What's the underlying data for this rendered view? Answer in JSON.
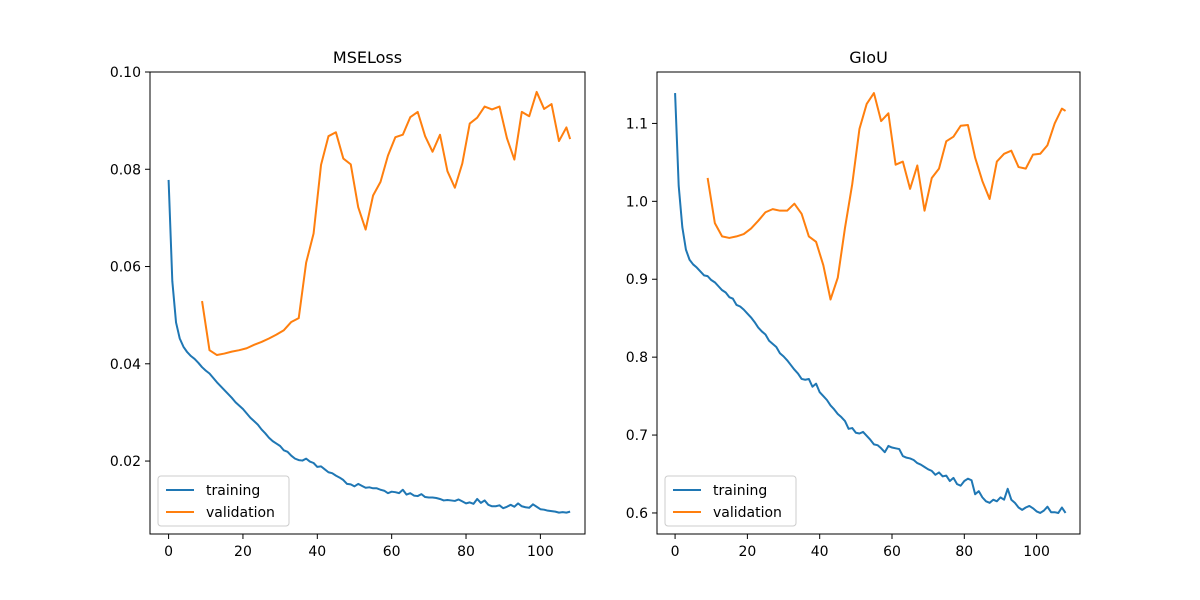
{
  "colors": {
    "training": "#1f77b4",
    "validation": "#ff7f0e",
    "axes": "#000000",
    "legend_border": "#cccccc"
  },
  "chart_data": [
    {
      "type": "line",
      "title": "MSELoss",
      "xlabel": "",
      "ylabel": "",
      "xlim": [
        -5,
        112
      ],
      "ylim": [
        0.005,
        0.1
      ],
      "xticks": [
        0,
        20,
        40,
        60,
        80,
        100
      ],
      "yticks": [
        0.02,
        0.04,
        0.06,
        0.08,
        0.1
      ],
      "ytick_labels": [
        "0.02",
        "0.04",
        "0.06",
        "0.08",
        "0.10"
      ],
      "grid": false,
      "legend": "lower-left",
      "series": [
        {
          "name": "training",
          "x": [
            0,
            1,
            2,
            3,
            4,
            5,
            6,
            7,
            8,
            9,
            10,
            11,
            12,
            13,
            14,
            15,
            16,
            17,
            18,
            19,
            20,
            21,
            22,
            23,
            24,
            25,
            26,
            27,
            28,
            29,
            30,
            31,
            32,
            33,
            34,
            35,
            36,
            37,
            38,
            39,
            40,
            41,
            42,
            43,
            44,
            45,
            46,
            47,
            48,
            49,
            50,
            51,
            52,
            53,
            54,
            55,
            56,
            57,
            58,
            59,
            60,
            61,
            62,
            63,
            64,
            65,
            66,
            67,
            68,
            69,
            70,
            71,
            72,
            73,
            74,
            75,
            76,
            77,
            78,
            79,
            80,
            81,
            82,
            83,
            84,
            85,
            86,
            87,
            88,
            89,
            90,
            91,
            92,
            93,
            94,
            95,
            96,
            97,
            98,
            99,
            100,
            101,
            102,
            103,
            104,
            105,
            106,
            107,
            108
          ],
          "values": [
            0.0778,
            0.057,
            0.0485,
            0.0452,
            0.0435,
            0.0424,
            0.0416,
            0.041,
            0.0402,
            0.0393,
            0.0386,
            0.038,
            0.0371,
            0.0362,
            0.0354,
            0.0346,
            0.0338,
            0.033,
            0.0321,
            0.0314,
            0.0307,
            0.0298,
            0.0289,
            0.0282,
            0.0275,
            0.0265,
            0.0257,
            0.0248,
            0.0241,
            0.0236,
            0.0231,
            0.0222,
            0.0219,
            0.0211,
            0.0205,
            0.0202,
            0.0201,
            0.0205,
            0.0199,
            0.0196,
            0.0188,
            0.0189,
            0.0183,
            0.0177,
            0.0175,
            0.017,
            0.0166,
            0.0161,
            0.0153,
            0.0152,
            0.0148,
            0.0153,
            0.0149,
            0.0145,
            0.0146,
            0.0144,
            0.0144,
            0.0141,
            0.0139,
            0.0134,
            0.0137,
            0.0136,
            0.0134,
            0.0141,
            0.0131,
            0.0134,
            0.0129,
            0.0128,
            0.0132,
            0.0126,
            0.0125,
            0.0125,
            0.0124,
            0.0122,
            0.0119,
            0.012,
            0.0119,
            0.0118,
            0.0121,
            0.0117,
            0.0113,
            0.0115,
            0.0112,
            0.0122,
            0.0114,
            0.0119,
            0.011,
            0.0107,
            0.0107,
            0.0109,
            0.0103,
            0.0106,
            0.011,
            0.0106,
            0.0113,
            0.0107,
            0.0105,
            0.0104,
            0.0111,
            0.0106,
            0.0101,
            0.01,
            0.0098,
            0.0097,
            0.0096,
            0.0094,
            0.0095,
            0.0094,
            0.0096
          ]
        },
        {
          "name": "validation",
          "x": [
            9,
            11,
            13,
            15,
            17,
            19,
            21,
            23,
            25,
            27,
            29,
            31,
            33,
            35,
            37,
            39,
            41,
            43,
            45,
            47,
            49,
            51,
            53,
            55,
            57,
            59,
            61,
            63,
            65,
            67,
            69,
            71,
            73,
            75,
            77,
            79,
            81,
            83,
            85,
            87,
            89,
            91,
            93,
            95,
            97,
            99,
            101,
            103,
            105,
            107,
            108
          ],
          "values": [
            0.0529,
            0.0428,
            0.0418,
            0.0421,
            0.0425,
            0.0428,
            0.0432,
            0.0439,
            0.0445,
            0.0452,
            0.046,
            0.0469,
            0.0486,
            0.0494,
            0.0608,
            0.0668,
            0.0809,
            0.0868,
            0.0876,
            0.0822,
            0.081,
            0.0722,
            0.0676,
            0.0746,
            0.0774,
            0.0828,
            0.0866,
            0.0871,
            0.0907,
            0.0918,
            0.0868,
            0.0836,
            0.0871,
            0.0796,
            0.0762,
            0.0812,
            0.0894,
            0.0906,
            0.0929,
            0.0923,
            0.0929,
            0.0864,
            0.082,
            0.0918,
            0.0909,
            0.0959,
            0.0924,
            0.0934,
            0.0858,
            0.0886,
            0.0862
          ]
        }
      ]
    },
    {
      "type": "line",
      "title": "GIoU",
      "xlabel": "",
      "ylabel": "",
      "xlim": [
        -5,
        112
      ],
      "ylim": [
        0.573,
        1.166
      ],
      "xticks": [
        0,
        20,
        40,
        60,
        80,
        100
      ],
      "yticks": [
        0.6,
        0.7,
        0.8,
        0.9,
        1.0,
        1.1
      ],
      "ytick_labels": [
        "0.6",
        "0.7",
        "0.8",
        "0.9",
        "1.0",
        "1.1"
      ],
      "grid": false,
      "legend": "lower-left",
      "series": [
        {
          "name": "training",
          "x": [
            0,
            1,
            2,
            3,
            4,
            5,
            6,
            7,
            8,
            9,
            10,
            11,
            12,
            13,
            14,
            15,
            16,
            17,
            18,
            19,
            20,
            21,
            22,
            23,
            24,
            25,
            26,
            27,
            28,
            29,
            30,
            31,
            32,
            33,
            34,
            35,
            36,
            37,
            38,
            39,
            40,
            41,
            42,
            43,
            44,
            45,
            46,
            47,
            48,
            49,
            50,
            51,
            52,
            53,
            54,
            55,
            56,
            57,
            58,
            59,
            60,
            61,
            62,
            63,
            64,
            65,
            66,
            67,
            68,
            69,
            70,
            71,
            72,
            73,
            74,
            75,
            76,
            77,
            78,
            79,
            80,
            81,
            82,
            83,
            84,
            85,
            86,
            87,
            88,
            89,
            90,
            91,
            92,
            93,
            94,
            95,
            96,
            97,
            98,
            99,
            100,
            101,
            102,
            103,
            104,
            105,
            106,
            107,
            108
          ],
          "values": [
            1.139,
            1.02,
            0.967,
            0.938,
            0.925,
            0.919,
            0.915,
            0.91,
            0.905,
            0.904,
            0.899,
            0.896,
            0.891,
            0.886,
            0.883,
            0.877,
            0.875,
            0.867,
            0.865,
            0.861,
            0.856,
            0.851,
            0.845,
            0.838,
            0.833,
            0.829,
            0.821,
            0.817,
            0.813,
            0.805,
            0.801,
            0.796,
            0.79,
            0.784,
            0.779,
            0.772,
            0.771,
            0.772,
            0.762,
            0.766,
            0.755,
            0.75,
            0.745,
            0.738,
            0.733,
            0.727,
            0.723,
            0.718,
            0.708,
            0.709,
            0.703,
            0.702,
            0.704,
            0.699,
            0.694,
            0.688,
            0.687,
            0.683,
            0.678,
            0.686,
            0.684,
            0.683,
            0.682,
            0.673,
            0.671,
            0.67,
            0.668,
            0.664,
            0.662,
            0.659,
            0.656,
            0.654,
            0.649,
            0.652,
            0.647,
            0.648,
            0.641,
            0.645,
            0.637,
            0.635,
            0.641,
            0.644,
            0.642,
            0.624,
            0.628,
            0.62,
            0.615,
            0.613,
            0.617,
            0.615,
            0.62,
            0.617,
            0.631,
            0.617,
            0.613,
            0.607,
            0.604,
            0.607,
            0.609,
            0.606,
            0.602,
            0.6,
            0.603,
            0.608,
            0.601,
            0.601,
            0.6,
            0.607,
            0.6
          ]
        },
        {
          "name": "validation",
          "x": [
            9,
            11,
            13,
            15,
            17,
            19,
            21,
            23,
            25,
            27,
            29,
            31,
            33,
            35,
            37,
            39,
            41,
            43,
            45,
            47,
            49,
            51,
            53,
            55,
            57,
            59,
            61,
            63,
            65,
            67,
            69,
            71,
            73,
            75,
            77,
            79,
            81,
            83,
            85,
            87,
            89,
            91,
            93,
            95,
            97,
            99,
            101,
            103,
            105,
            107,
            108
          ],
          "values": [
            1.03,
            0.972,
            0.955,
            0.953,
            0.955,
            0.958,
            0.965,
            0.975,
            0.986,
            0.99,
            0.988,
            0.988,
            0.997,
            0.984,
            0.955,
            0.948,
            0.918,
            0.874,
            0.902,
            0.966,
            1.022,
            1.093,
            1.125,
            1.139,
            1.103,
            1.113,
            1.047,
            1.051,
            1.016,
            1.046,
            0.988,
            1.03,
            1.042,
            1.077,
            1.083,
            1.097,
            1.098,
            1.056,
            1.026,
            1.003,
            1.051,
            1.061,
            1.065,
            1.044,
            1.042,
            1.06,
            1.061,
            1.072,
            1.1,
            1.119,
            1.116
          ]
        }
      ]
    }
  ]
}
